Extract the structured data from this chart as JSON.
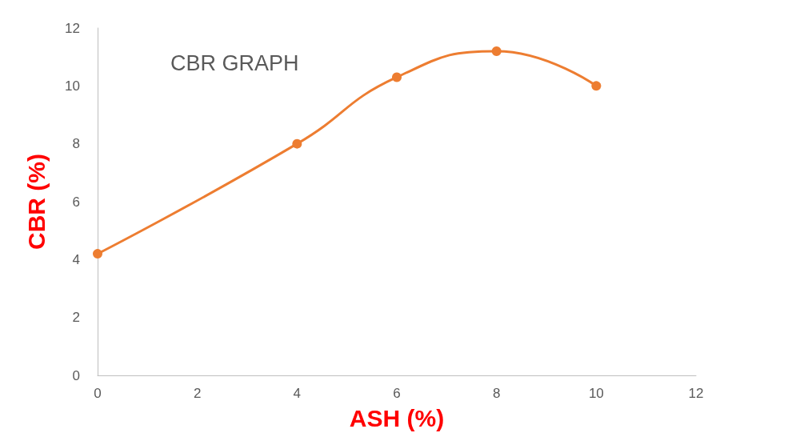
{
  "chart_data": {
    "type": "line",
    "title": "CBR GRAPH",
    "xlabel": "ASH (%)",
    "ylabel": "CBR (%)",
    "x": [
      0,
      4,
      6,
      8,
      10
    ],
    "series": [
      {
        "color": "#ed7d31",
        "values": [
          4.2,
          8,
          10.3,
          11.2,
          10
        ]
      }
    ],
    "xlim": [
      0,
      12
    ],
    "xticks": [
      0,
      2,
      4,
      6,
      8,
      10,
      12
    ],
    "ylim": [
      0,
      12
    ],
    "yticks": [
      0,
      2,
      4,
      6,
      8,
      10,
      12
    ],
    "grid": false,
    "marker": "circle",
    "line_style": "solid"
  }
}
